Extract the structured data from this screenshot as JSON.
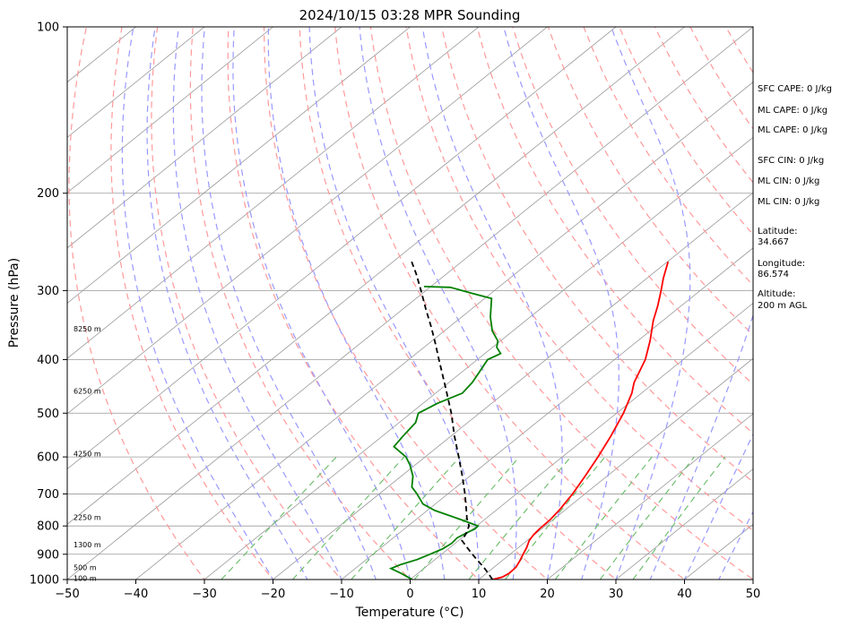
{
  "chart_data": {
    "type": "line",
    "title": "2024/10/15 03:28 MPR Sounding",
    "xlabel": "Temperature (°C)",
    "ylabel": "Pressure (hPa)",
    "xlim": [
      -50,
      50
    ],
    "ylim": [
      1000,
      100
    ],
    "y_scale": "log",
    "skew": true,
    "grid": true,
    "x_ticks": [
      "−50",
      "−40",
      "−30",
      "−20",
      "−10",
      "0",
      "10",
      "20",
      "30",
      "40",
      "50"
    ],
    "y_ticks": [
      "100",
      "200",
      "300",
      "400",
      "500",
      "600",
      "700",
      "800",
      "900",
      "1000"
    ],
    "height_labels": [
      {
        "label": "8250 m",
        "pressure": 352
      },
      {
        "label": "6250 m",
        "pressure": 456
      },
      {
        "label": "4250 m",
        "pressure": 592
      },
      {
        "label": "2250 m",
        "pressure": 771
      },
      {
        "label": "1300 m",
        "pressure": 865
      },
      {
        "label": "500 m",
        "pressure": 950
      },
      {
        "label": "100 m",
        "pressure": 995
      }
    ],
    "series": [
      {
        "color": "#ff0000",
        "points": [
          [
            1000,
            12.0
          ],
          [
            990,
            13.0
          ],
          [
            975,
            13.3
          ],
          [
            950,
            13.2
          ],
          [
            925,
            12.6
          ],
          [
            900,
            11.9
          ],
          [
            875,
            11.2
          ],
          [
            850,
            10.3
          ],
          [
            830,
            9.9
          ],
          [
            810,
            9.7
          ],
          [
            780,
            9.6
          ],
          [
            750,
            9.2
          ],
          [
            700,
            8.2
          ],
          [
            650,
            6.8
          ],
          [
            600,
            5.2
          ],
          [
            550,
            3.3
          ],
          [
            500,
            1.0
          ],
          [
            460,
            -1.4
          ],
          [
            440,
            -3.0
          ],
          [
            400,
            -5.5
          ],
          [
            370,
            -8.2
          ],
          [
            340,
            -11.4
          ],
          [
            320,
            -13.4
          ],
          [
            300,
            -15.7
          ],
          [
            285,
            -17.6
          ],
          [
            266,
            -19.9
          ]
        ]
      },
      {
        "color": "#008000",
        "points": [
          [
            1000,
            0.3
          ],
          [
            975,
            -2.4
          ],
          [
            955,
            -4.8
          ],
          [
            940,
            -4.1
          ],
          [
            920,
            -2.6
          ],
          [
            900,
            -1.7
          ],
          [
            880,
            -0.8
          ],
          [
            860,
            -0.5
          ],
          [
            840,
            -0.7
          ],
          [
            820,
            -0.1
          ],
          [
            810,
            0.3
          ],
          [
            800,
            0.2
          ],
          [
            780,
            -3.3
          ],
          [
            750,
            -8.9
          ],
          [
            730,
            -11.8
          ],
          [
            700,
            -14.5
          ],
          [
            680,
            -16.5
          ],
          [
            650,
            -18.3
          ],
          [
            620,
            -20.8
          ],
          [
            600,
            -22.8
          ],
          [
            575,
            -26.4
          ],
          [
            550,
            -27.0
          ],
          [
            520,
            -27.6
          ],
          [
            500,
            -28.9
          ],
          [
            480,
            -27.9
          ],
          [
            460,
            -26.1
          ],
          [
            440,
            -26.6
          ],
          [
            420,
            -27.5
          ],
          [
            400,
            -28.5
          ],
          [
            390,
            -27.7
          ],
          [
            380,
            -29.4
          ],
          [
            370,
            -30.4
          ],
          [
            355,
            -33.0
          ],
          [
            335,
            -35.8
          ],
          [
            310,
            -39.0
          ],
          [
            303,
            -43.0
          ],
          [
            296,
            -47.0
          ],
          [
            295,
            -51.0
          ]
        ]
      },
      {
        "color": "#000000",
        "dash": "6,4",
        "points": [
          [
            1000,
            12.0
          ],
          [
            975,
            10.3
          ],
          [
            950,
            8.5
          ],
          [
            925,
            6.5
          ],
          [
            900,
            4.5
          ],
          [
            875,
            2.5
          ],
          [
            850,
            0.5
          ],
          [
            825,
            -0.2
          ],
          [
            800,
            -1.1
          ],
          [
            775,
            -2.8
          ],
          [
            750,
            -4.3
          ],
          [
            700,
            -7.5
          ],
          [
            650,
            -11.1
          ],
          [
            600,
            -15.1
          ],
          [
            550,
            -19.5
          ],
          [
            500,
            -24.1
          ],
          [
            450,
            -29.5
          ],
          [
            400,
            -35.6
          ],
          [
            375,
            -38.9
          ],
          [
            350,
            -42.5
          ],
          [
            325,
            -46.5
          ],
          [
            300,
            -50.7
          ],
          [
            280,
            -54.4
          ],
          [
            265,
            -57.5
          ]
        ]
      }
    ]
  },
  "info_panel": [
    "SFC CAPE: 0 J/kg",
    "ML CAPE: 0 J/kg",
    "ML CAPE: 0 J/kg",
    "SFC CIN: 0 J/kg",
    "ML CIN: 0 J/kg",
    "ML CIN: 0 J/kg",
    "Latitude:",
    "34.667",
    "Longitude:",
    "86.574",
    "Altitude:",
    "200 m AGL"
  ],
  "colors": {
    "temperature": "#ff0000",
    "dewpoint": "#008000",
    "parcel": "#000000",
    "dry_adiabat": "#ff9999",
    "moist_adiabat": "#9999ff",
    "mixing_ratio": "#66bb66",
    "isotherm": "#999999",
    "isobar": "#999999"
  }
}
